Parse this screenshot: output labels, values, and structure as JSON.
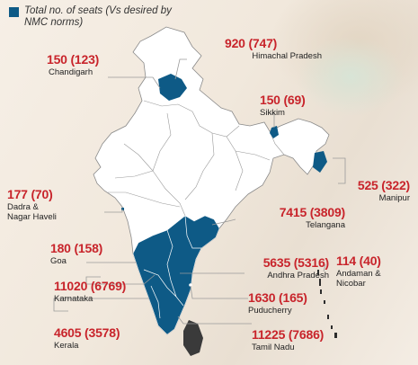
{
  "legend": {
    "text": "Total no. of seats (Vs desired by NMC norms)",
    "swatch_color": "#0e5a86"
  },
  "colors": {
    "highlight": "#0e5a86",
    "land": "#ffffff",
    "border": "#8a8a8a",
    "sri_lanka": "#3a3a3a",
    "value_text": "#c8242b"
  },
  "states": [
    {
      "id": "chandigarh",
      "name": "Chandigarh",
      "value": "150 (123)"
    },
    {
      "id": "himachal",
      "name": "Himachal Pradesh",
      "value": "920 (747)"
    },
    {
      "id": "sikkim",
      "name": "Sikkim",
      "value": "150 (69)"
    },
    {
      "id": "manipur",
      "name": "Manipur",
      "value": "525 (322)"
    },
    {
      "id": "dadra",
      "name": "Dadra & Nagar Haveli",
      "name_line1": "Dadra &",
      "name_line2": "Nagar Haveli",
      "value": "177 (70)"
    },
    {
      "id": "telangana",
      "name": "Telangana",
      "value": "7415 (3809)"
    },
    {
      "id": "goa",
      "name": "Goa",
      "value": "180 (158)"
    },
    {
      "id": "andhra",
      "name": "Andhra Pradesh",
      "value": "5635 (5316)"
    },
    {
      "id": "andaman",
      "name": "Andaman & Nicobar",
      "name_line1": "Andaman &",
      "name_line2": "Nicobar",
      "value": "114 (40)"
    },
    {
      "id": "karnataka",
      "name": "Karnataka",
      "value": "11020 (6769)"
    },
    {
      "id": "puducherry",
      "name": "Puducherry",
      "value": "1630 (165)"
    },
    {
      "id": "kerala",
      "name": "Kerala",
      "value": "4605 (3578)"
    },
    {
      "id": "tamilnadu",
      "name": "Tamil Nadu",
      "value": "11225 (7686)"
    }
  ]
}
